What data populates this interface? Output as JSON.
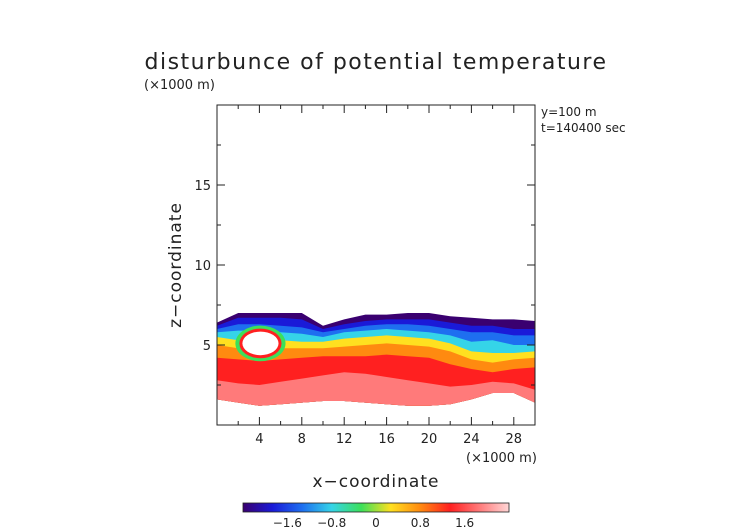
{
  "chart_data": {
    "type": "heatmap",
    "title": "disturbunce of potential temperature",
    "y_unit_label": "(×1000 m)",
    "x_unit_label": "(×1000 m)",
    "xlabel": "x−coordinate",
    "ylabel": "z−coordinate",
    "annotations": [
      "y=100 m",
      "t=140400 sec"
    ],
    "xlim": [
      0,
      30
    ],
    "ylim": [
      0,
      20
    ],
    "x_ticks": [
      4,
      8,
      12,
      16,
      20,
      24,
      28
    ],
    "x_tick_labels": [
      "4",
      "8",
      "12",
      "16",
      "20",
      "24",
      "28"
    ],
    "y_ticks": [
      5,
      10,
      15
    ],
    "y_tick_labels": [
      "5",
      "10",
      "15"
    ],
    "colorbar": {
      "min": -2.4,
      "max": 2.4,
      "ticks": [
        -1.6,
        -0.8,
        0,
        0.8,
        1.6
      ],
      "tick_labels": [
        "−1.6",
        "−0.8",
        "0",
        "0.8",
        "1.6"
      ],
      "colors": [
        "#3a0070",
        "#1a1ad8",
        "#1e6ff0",
        "#35d4e8",
        "#3ce05a",
        "#ffe020",
        "#ff8a10",
        "#ff2020",
        "#ff7a7a",
        "#ffd6d6"
      ]
    },
    "field": {
      "x": [
        0,
        2,
        4,
        6,
        8,
        10,
        12,
        14,
        16,
        18,
        20,
        22,
        24,
        26,
        28,
        30
      ],
      "top_z": [
        6.4,
        7.0,
        7.0,
        7.0,
        7.0,
        6.2,
        6.6,
        6.9,
        6.9,
        7.0,
        7.0,
        6.8,
        6.7,
        6.6,
        6.6,
        6.5
      ],
      "layer_boundaries": [
        {
          "z": [
            6.4,
            7.0,
            7.0,
            7.0,
            7.0,
            6.2,
            6.6,
            6.9,
            6.9,
            7.0,
            7.0,
            6.8,
            6.7,
            6.6,
            6.6,
            6.5
          ],
          "value": -2.2
        },
        {
          "z": [
            6.2,
            6.7,
            6.7,
            6.7,
            6.6,
            6.0,
            6.3,
            6.5,
            6.6,
            6.6,
            6.6,
            6.4,
            6.2,
            6.2,
            6.0,
            6.0
          ],
          "value": -1.8
        },
        {
          "z": [
            6.0,
            6.3,
            6.3,
            6.2,
            6.1,
            5.8,
            6.0,
            6.2,
            6.3,
            6.3,
            6.2,
            6.0,
            5.8,
            5.8,
            5.6,
            5.6
          ],
          "value": -1.2
        },
        {
          "z": [
            5.8,
            5.9,
            5.9,
            5.8,
            5.7,
            5.5,
            5.8,
            5.9,
            6.0,
            5.9,
            5.8,
            5.6,
            5.2,
            5.3,
            5.0,
            5.0
          ],
          "value": -0.6
        },
        {
          "z": [
            5.5,
            5.3,
            5.2,
            5.3,
            5.2,
            5.2,
            5.4,
            5.5,
            5.6,
            5.5,
            5.4,
            5.1,
            4.6,
            4.5,
            4.5,
            4.6
          ],
          "value": 0.2
        },
        {
          "z": [
            5.0,
            4.8,
            4.7,
            4.8,
            4.8,
            4.8,
            4.9,
            5.0,
            5.1,
            5.0,
            4.9,
            4.6,
            4.1,
            3.9,
            4.1,
            4.2
          ],
          "value": 0.8
        },
        {
          "z": [
            4.2,
            4.1,
            4.0,
            4.1,
            4.2,
            4.3,
            4.3,
            4.3,
            4.4,
            4.3,
            4.2,
            3.8,
            3.5,
            3.3,
            3.5,
            3.6
          ],
          "value": 1.4
        },
        {
          "z": [
            2.8,
            2.6,
            2.5,
            2.7,
            2.9,
            3.1,
            3.3,
            3.2,
            3.0,
            2.8,
            2.6,
            2.4,
            2.5,
            2.7,
            2.6,
            2.2
          ],
          "value": 1.9
        },
        {
          "z": [
            1.6,
            1.4,
            1.2,
            1.3,
            1.4,
            1.5,
            1.5,
            1.4,
            1.3,
            1.2,
            1.2,
            1.3,
            1.6,
            2.0,
            2.0,
            1.4
          ],
          "value": 2.3
        }
      ],
      "bottom_z": [
        1.6,
        1.4,
        1.2,
        1.3,
        1.4,
        1.5,
        1.5,
        1.4,
        1.3,
        1.2,
        1.2,
        1.3,
        1.6,
        2.0,
        2.0,
        1.4
      ],
      "bubble": {
        "cx": 4.1,
        "cz": 5.1,
        "rx": 1.8,
        "rz": 0.8
      }
    }
  }
}
